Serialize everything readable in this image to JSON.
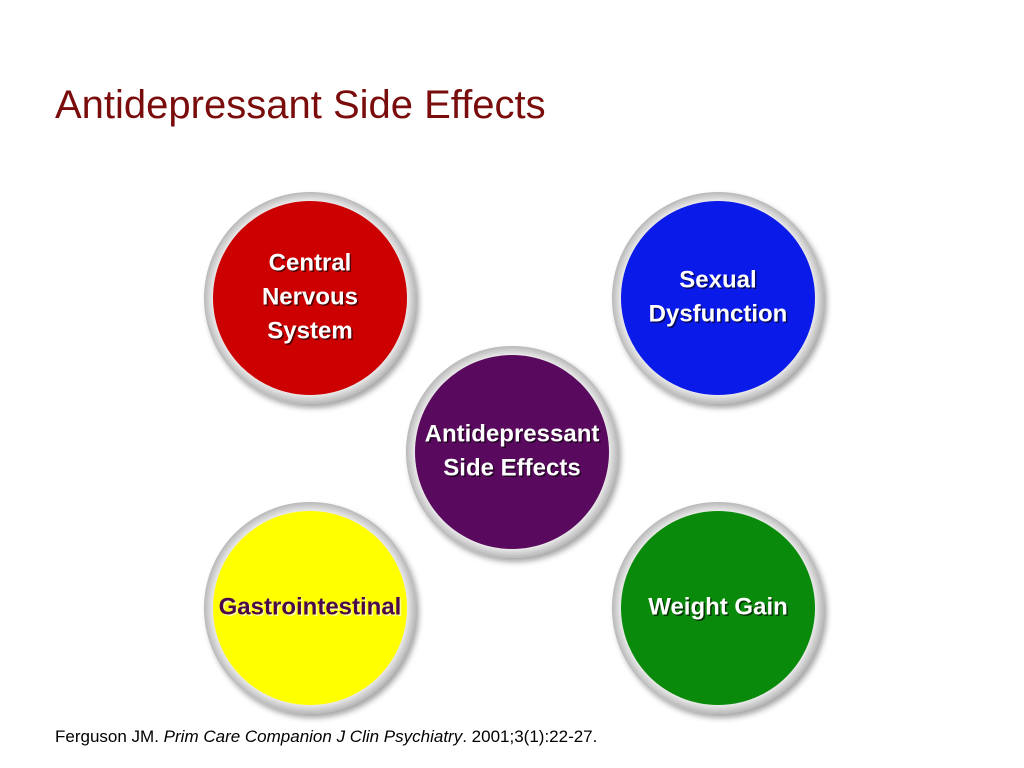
{
  "header": {
    "title": "Antidepressant Side Effects"
  },
  "nodes": [
    {
      "lines": [
        "Central",
        "Nervous",
        "System"
      ]
    },
    {
      "lines": [
        "Sexual",
        "Dysfunction"
      ]
    },
    {
      "lines": [
        "Antidepressant",
        "Side Effects"
      ]
    },
    {
      "lines": [
        "Gastrointestinal"
      ]
    },
    {
      "lines": [
        "Weight Gain"
      ]
    }
  ],
  "citation": {
    "author": "Ferguson JM.",
    "journal": "Prim Care Companion J Clin Psychiatry",
    "details": ". 2001;3(1):22-27."
  }
}
